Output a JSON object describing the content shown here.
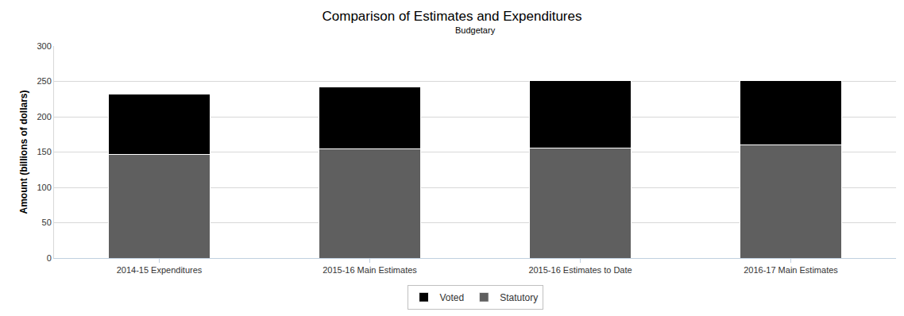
{
  "chart_data": {
    "type": "bar",
    "title": "Comparison of Estimates and Expenditures",
    "subtitle": "Budgetary",
    "y_label": "Amount (billions of dollars)",
    "categories": [
      "2014-15 Expenditures",
      "2015-16 Main Estimates",
      "2015-16 Estimates to Date",
      "2016-17 Main Estimates"
    ],
    "series": [
      {
        "name": "Voted",
        "color": "#000000",
        "values": [
          85,
          88,
          95,
          91
        ]
      },
      {
        "name": "Statutory",
        "color": "#5f5f5f",
        "values": [
          147,
          154,
          156,
          160
        ]
      }
    ],
    "stacked": true,
    "ylim": [
      0,
      300
    ],
    "yticks": [
      0,
      50,
      100,
      150,
      200,
      250,
      300
    ],
    "grid": true,
    "legend": "bottom"
  }
}
